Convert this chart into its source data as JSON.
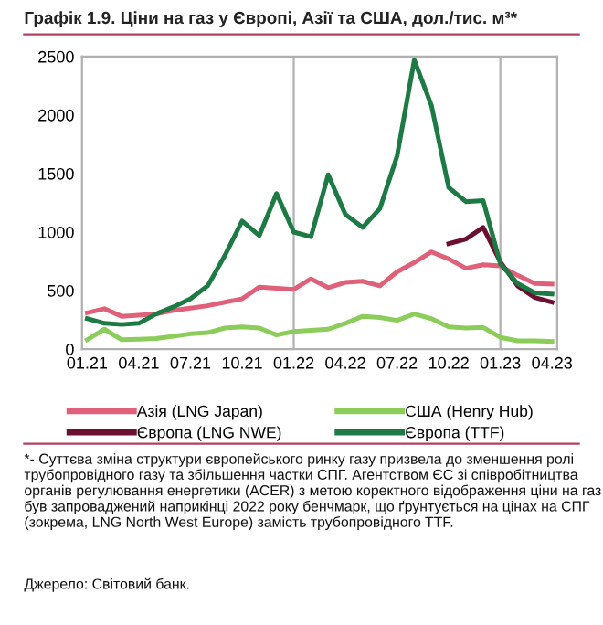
{
  "chart_data": {
    "type": "line",
    "title": "Графік 1.9. Ціни на газ у Європі, Азії та США, дол./тис. м³*",
    "categories": [
      "01.21",
      null,
      null,
      "04.21",
      null,
      null,
      "07.21",
      null,
      null,
      "10.21",
      null,
      null,
      "01.22",
      null,
      null,
      "04.22",
      null,
      null,
      "07.22",
      null,
      null,
      "10.22",
      null,
      null,
      "01.23",
      null,
      null,
      "04.23"
    ],
    "series": [
      {
        "name": "Азія (LNG Japan)",
        "color": "#e0607a",
        "values": [
          310,
          345,
          280,
          290,
          300,
          330,
          350,
          370,
          400,
          430,
          530,
          520,
          510,
          600,
          525,
          570,
          580,
          540,
          660,
          740,
          830,
          770,
          690,
          720,
          710,
          630,
          560,
          555
        ]
      },
      {
        "name": "Європа (LNG NWE)",
        "color": "#6b1030",
        "values": [
          null,
          null,
          null,
          null,
          null,
          null,
          null,
          null,
          null,
          null,
          null,
          null,
          null,
          null,
          null,
          null,
          null,
          null,
          null,
          null,
          null,
          900,
          940,
          1040,
          745,
          540,
          440,
          400
        ]
      },
      {
        "name": "США (Henry Hub)",
        "color": "#8ccc5a",
        "values": [
          80,
          170,
          80,
          85,
          90,
          110,
          130,
          140,
          180,
          190,
          180,
          120,
          150,
          160,
          170,
          220,
          280,
          270,
          245,
          300,
          260,
          190,
          180,
          185,
          100,
          70,
          70,
          65
        ]
      },
      {
        "name": "Європа (TTF)",
        "color": "#1e7a45",
        "values": [
          260,
          220,
          210,
          220,
          300,
          360,
          430,
          540,
          800,
          1095,
          970,
          1330,
          1000,
          960,
          1490,
          1150,
          1040,
          1200,
          1650,
          2470,
          2080,
          1380,
          1260,
          1270,
          730,
          560,
          480,
          470
        ]
      }
    ],
    "ylim": [
      0,
      2500
    ],
    "yticks": [
      0,
      500,
      1000,
      1500,
      2000,
      2500
    ],
    "ref_lines": [
      {
        "axis": "x",
        "value": "01.22",
        "color": "#b0b0b0"
      },
      {
        "axis": "x",
        "value": "01.23",
        "color": "#b0b0b0"
      }
    ],
    "grid": false,
    "legend": "bottom",
    "marker": "none",
    "line_style": "solid",
    "annotations": [
      "*- Суттєва зміна структури європейського ринку газу призвела до зменшення ролі трубопровідного газу та збільшення частки СПГ. Агентством ЄС зі співробітництва органів регулювання енергетики (ACER) з метою коректного відображення ціни на газ був запроваджений наприкінці 2022 року бенчмарк, що ґрунтується на цінах на СПГ (зокрема, LNG North West Europe) замість трубопровідного TTF.",
      "Джерело: Світовий банк."
    ]
  }
}
